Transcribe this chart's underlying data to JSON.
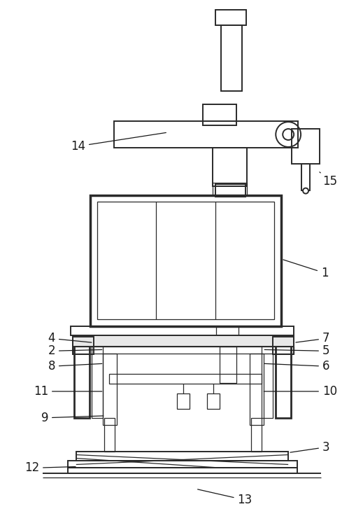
{
  "bg_color": "#ffffff",
  "line_color": "#2a2a2a",
  "lw_thick": 2.0,
  "lw_med": 1.4,
  "lw_thin": 0.9,
  "label_fs": 12
}
